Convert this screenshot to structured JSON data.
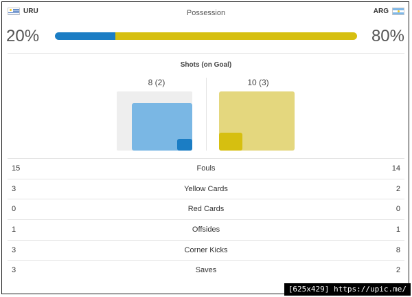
{
  "teams": {
    "home": {
      "code": "URU",
      "flag_icon": "uruguay-flag-icon",
      "color": "#1b7dc4"
    },
    "away": {
      "code": "ARG",
      "flag_icon": "argentina-flag-icon",
      "color": "#d6bf10"
    }
  },
  "possession": {
    "title": "Possession",
    "home_label": "20%",
    "away_label": "80%",
    "home_fraction": 0.2
  },
  "shots": {
    "title": "Shots (on Goal)",
    "home_label": "8 (2)",
    "away_label": "10 (3)"
  },
  "stats": [
    {
      "label": "Fouls",
      "home": "15",
      "away": "14"
    },
    {
      "label": "Yellow Cards",
      "home": "3",
      "away": "2"
    },
    {
      "label": "Red Cards",
      "home": "0",
      "away": "0"
    },
    {
      "label": "Offsides",
      "home": "1",
      "away": "1"
    },
    {
      "label": "Corner Kicks",
      "home": "3",
      "away": "8"
    },
    {
      "label": "Saves",
      "home": "3",
      "away": "2"
    }
  ],
  "watermark": "[625x429] https://upic.me/"
}
